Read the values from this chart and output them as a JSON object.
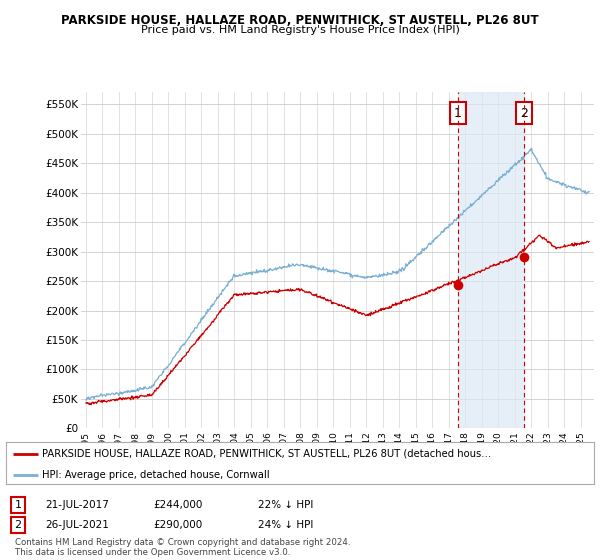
{
  "title": "PARKSIDE HOUSE, HALLAZE ROAD, PENWITHICK, ST AUSTELL, PL26 8UT",
  "subtitle": "Price paid vs. HM Land Registry's House Price Index (HPI)",
  "hpi_color": "#7bafd4",
  "hpi_fill_color": "#dce9f5",
  "price_color": "#cc0000",
  "marker_color": "#cc0000",
  "vline_color": "#cc0000",
  "bg_color": "#ffffff",
  "grid_color": "#cccccc",
  "ylim": [
    0,
    570000
  ],
  "yticks": [
    0,
    50000,
    100000,
    150000,
    200000,
    250000,
    300000,
    350000,
    400000,
    450000,
    500000,
    550000
  ],
  "ytick_labels": [
    "£0",
    "£50K",
    "£100K",
    "£150K",
    "£200K",
    "£250K",
    "£300K",
    "£350K",
    "£400K",
    "£450K",
    "£500K",
    "£550K"
  ],
  "sale1_x": 2017.55,
  "sale1_y": 244000,
  "sale1_label": "1",
  "sale2_x": 2021.55,
  "sale2_y": 290000,
  "sale2_label": "2",
  "legend_line1": "PARKSIDE HOUSE, HALLAZE ROAD, PENWITHICK, ST AUSTELL, PL26 8UT (detached hous…",
  "legend_line2": "HPI: Average price, detached house, Cornwall",
  "table_row1_num": "1",
  "table_row1_date": "21-JUL-2017",
  "table_row1_price": "£244,000",
  "table_row1_hpi": "22% ↓ HPI",
  "table_row2_num": "2",
  "table_row2_date": "26-JUL-2021",
  "table_row2_price": "£290,000",
  "table_row2_hpi": "24% ↓ HPI",
  "footer": "Contains HM Land Registry data © Crown copyright and database right 2024.\nThis data is licensed under the Open Government Licence v3.0.",
  "xmin": 1994.7,
  "xmax": 2025.8
}
